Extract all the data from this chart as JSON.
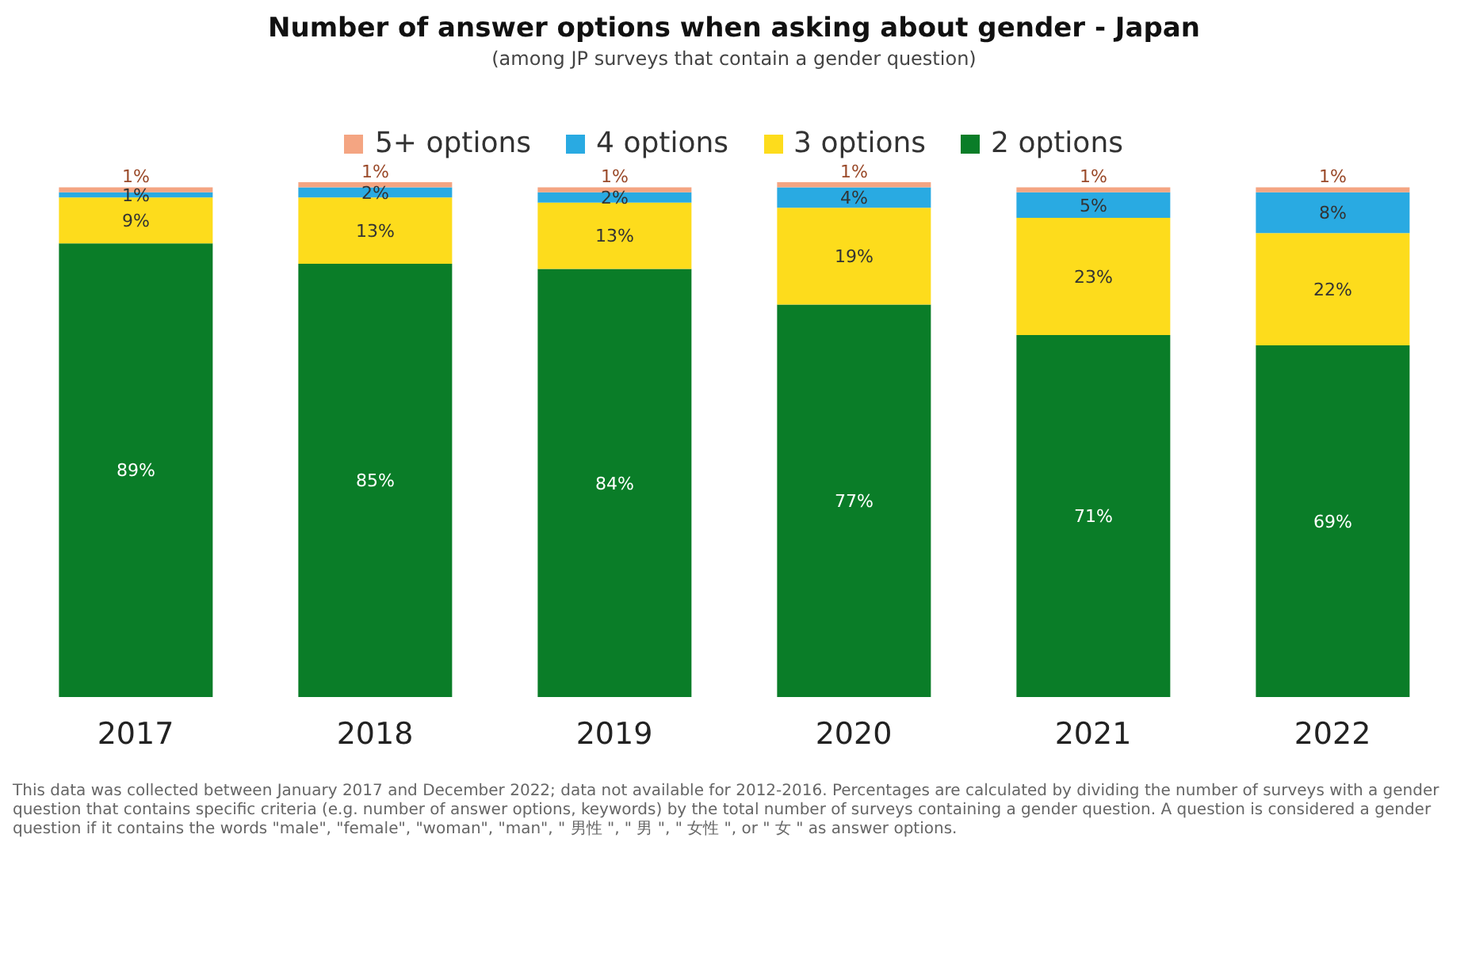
{
  "chart_data": {
    "type": "bar",
    "title": "Number of answer options when asking about gender - Japan",
    "subtitle": "(among JP surveys that contain a gender question)",
    "categories": [
      "2017",
      "2018",
      "2019",
      "2020",
      "2021",
      "2022"
    ],
    "stacked": true,
    "legend": "top",
    "tick_labels": "x",
    "series": [
      {
        "name": "2 options",
        "color": "#0a7d28",
        "values": [
          89,
          85,
          84,
          77,
          71,
          69
        ],
        "value_labels": [
          "89%",
          "85%",
          "84%",
          "77%",
          "71%",
          "69%"
        ]
      },
      {
        "name": "3 options",
        "color": "#fddc1c",
        "values": [
          9,
          13,
          13,
          19,
          23,
          22
        ],
        "value_labels": [
          "9%",
          "13%",
          "13%",
          "19%",
          "23%",
          "22%"
        ]
      },
      {
        "name": "4 options",
        "color": "#29aae2",
        "values": [
          1,
          2,
          2,
          4,
          5,
          8
        ],
        "value_labels": [
          "1%",
          "2%",
          "2%",
          "4%",
          "5%",
          "8%"
        ]
      },
      {
        "name": "5+ options",
        "color": "#f4a582",
        "values": [
          1,
          1,
          1,
          1,
          1,
          1
        ],
        "value_labels": [
          "1%",
          "1%",
          "1%",
          "1%",
          "1%",
          "1%"
        ]
      }
    ],
    "annotations": [
      "This data was collected between January 2017 and December 2022; data not available for 2012-2016. Percentages are calculated by dividing the number of surveys with a gender question that contains specific criteria (e.g. number of answer options, keywords) by the total number of surveys containing a gender question. A question is considered a gender question if it contains the words \"male\", \"female\", \"woman\", \"man\", \" 男性 \", \" 男 \", \" 女性 \", or \" 女 \" as answer options."
    ]
  }
}
